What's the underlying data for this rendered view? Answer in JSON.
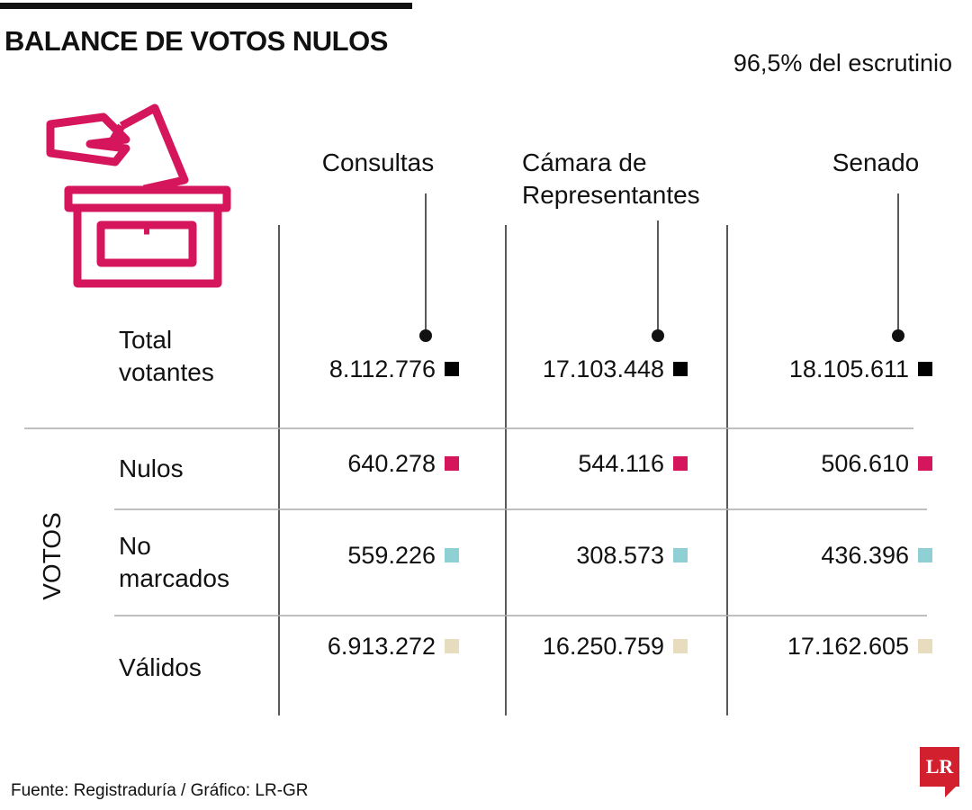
{
  "header": {
    "title": "BALANCE DE VOTOS NULOS",
    "subtitle": "96,5% del escrutinio"
  },
  "columns": [
    "Consultas",
    "Cámara de Representantes",
    "Senado"
  ],
  "group_label": "VOTOS",
  "rows": [
    {
      "label": "Total votantes",
      "values": [
        "8.112.776",
        "17.103.448",
        "18.105.611"
      ],
      "color": "#000000"
    },
    {
      "label": "Nulos",
      "values": [
        "640.278",
        "544.116",
        "506.610"
      ],
      "color": "#d6165c"
    },
    {
      "label": "No marcados",
      "values": [
        "559.226",
        "308.573",
        "436.396"
      ],
      "color": "#8fd0d4"
    },
    {
      "label": "Válidos",
      "values": [
        "6.913.272",
        "16.250.759",
        "17.162.605"
      ],
      "color": "#e8dcbe"
    }
  ],
  "footer": {
    "source": "Fuente: Registraduría / Gráfico: LR-GR",
    "logo": "LR"
  }
}
